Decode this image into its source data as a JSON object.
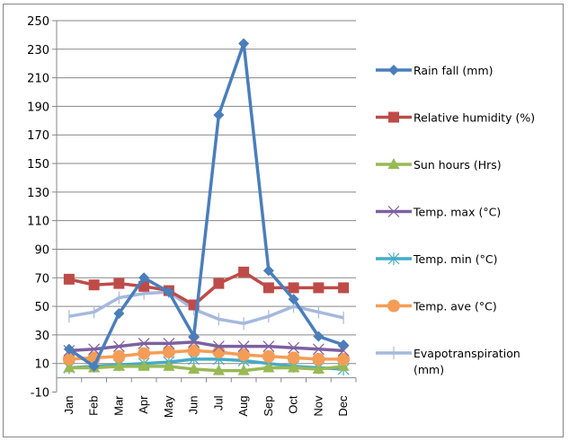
{
  "chart_data": {
    "type": "line",
    "title": "",
    "xlabel": "",
    "ylabel": "",
    "ylim": [
      -10,
      250
    ],
    "yticks": [
      -10,
      10,
      30,
      50,
      70,
      90,
      110,
      130,
      150,
      170,
      190,
      210,
      230,
      250
    ],
    "grid": true,
    "legend_position": "right",
    "categories": [
      "Jan",
      "Feb",
      "Mar",
      "Apr",
      "May",
      "Jun",
      "Jul",
      "Aug",
      "Sep",
      "Oct",
      "Nov",
      "Dec"
    ],
    "series": [
      {
        "name": "Rain fall (mm)",
        "color": "#4A7EBB",
        "marker": "diamond",
        "values": [
          20,
          8,
          45,
          70,
          60,
          29,
          184,
          234,
          75,
          55,
          29,
          23
        ]
      },
      {
        "name": "Relative humidity (%)",
        "color": "#BE4B48",
        "marker": "square",
        "values": [
          69,
          65,
          66,
          64,
          61,
          51,
          66,
          74,
          63,
          63,
          63,
          63
        ]
      },
      {
        "name": "Sun hours (Hrs)",
        "color": "#98B954",
        "marker": "triangle",
        "values": [
          7,
          7,
          8,
          8,
          8,
          6,
          5,
          5,
          7,
          7,
          6,
          8
        ]
      },
      {
        "name": "Temp. max (°C)",
        "color": "#7D60A0",
        "marker": "x",
        "values": [
          19,
          20,
          22,
          24,
          24,
          25,
          22,
          22,
          22,
          21,
          20,
          19
        ]
      },
      {
        "name": "Temp. min (°C)",
        "color": "#46AAC5",
        "marker": "star",
        "values": [
          7,
          8,
          9,
          10,
          11,
          13,
          13,
          12,
          10,
          8,
          7,
          6
        ]
      },
      {
        "name": "Temp. ave (°C)",
        "color": "#F59D56",
        "marker": "circle",
        "values": [
          13,
          14,
          15,
          17,
          18,
          19,
          18,
          16,
          15,
          14,
          13,
          13
        ]
      },
      {
        "name": "Evapotranspiration (mm)",
        "color": "#A5B9DD",
        "marker": "plus",
        "values": [
          43,
          46,
          56,
          59,
          60,
          48,
          41,
          38,
          43,
          50,
          46,
          42
        ]
      }
    ],
    "legend_lines": [
      [
        "Rain fall (mm)"
      ],
      [
        "Relative humidity (%)"
      ],
      [
        "Sun hours (Hrs)"
      ],
      [
        "Temp. max (°C)"
      ],
      [
        "Temp. min (°C)"
      ],
      [
        "Temp. ave (°C)"
      ],
      [
        "Evapotranspiration",
        "(mm)"
      ]
    ]
  }
}
